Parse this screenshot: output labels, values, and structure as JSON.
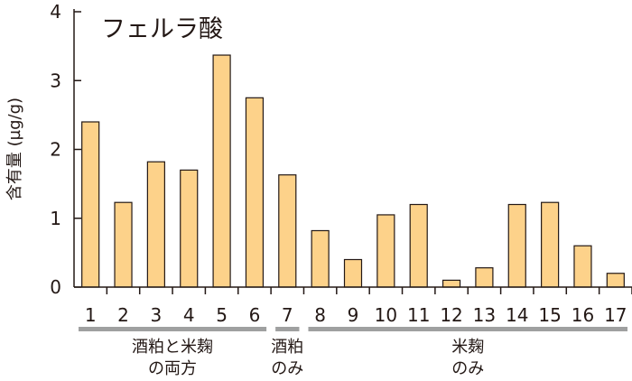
{
  "chart_data": {
    "type": "bar",
    "title": "フェルラ酸",
    "ylabel": "含有量 (µg/g)",
    "xlabel": "",
    "ylim": [
      0,
      4
    ],
    "yticks": [
      "0",
      "1",
      "2",
      "3",
      "4"
    ],
    "categories": [
      "1",
      "2",
      "3",
      "4",
      "5",
      "6",
      "7",
      "8",
      "9",
      "10",
      "11",
      "12",
      "13",
      "14",
      "15",
      "16",
      "17"
    ],
    "values": [
      2.4,
      1.23,
      1.82,
      1.7,
      3.37,
      2.75,
      1.63,
      0.82,
      0.4,
      1.05,
      1.2,
      0.1,
      0.28,
      1.2,
      1.23,
      0.6,
      0.2
    ],
    "bar_color": "#fdd28a",
    "groups": [
      {
        "from": 1,
        "to": 6,
        "label_line1": "酒粕と米麹",
        "label_line2": "の両方"
      },
      {
        "from": 7,
        "to": 7,
        "label_line1": "酒粕",
        "label_line2": "のみ"
      },
      {
        "from": 8,
        "to": 17,
        "label_line1": "米麹",
        "label_line2": "のみ"
      }
    ]
  }
}
